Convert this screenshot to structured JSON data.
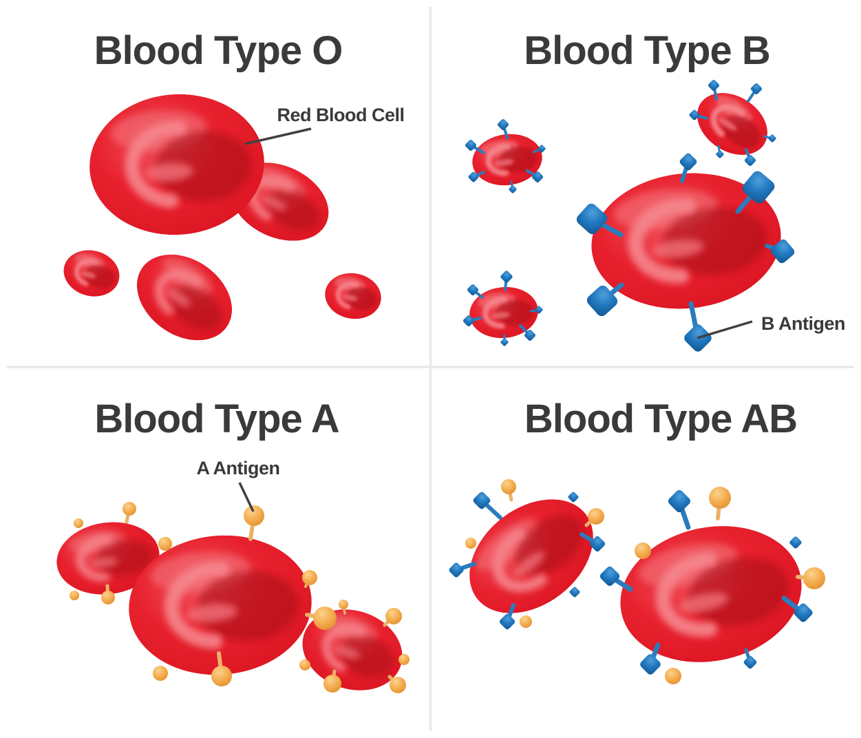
{
  "diagram": {
    "panels": [
      {
        "id": "o",
        "title": "Blood Type O",
        "callout": "Red Blood Cell"
      },
      {
        "id": "b",
        "title": "Blood Type B",
        "callout": "B Antigen"
      },
      {
        "id": "a",
        "title": "Blood Type A",
        "callout": "A Antigen"
      },
      {
        "id": "ab",
        "title": "Blood Type AB",
        "callout": ""
      }
    ],
    "colors": {
      "title_text": "#3a3a3c",
      "cell_red": "#e8212e",
      "cell_red_dark": "#b5121d",
      "cell_red_light": "#f5868d",
      "antigen_b_blue": "#2178bf",
      "antigen_a_orange": "#f3a94a",
      "callout_line": "#3f3f41",
      "divider": "#e9e9e9"
    }
  }
}
